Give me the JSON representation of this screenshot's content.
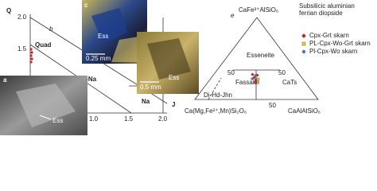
{
  "qj_diagram": {
    "y_axis_label": "Q",
    "x_axis_label": "J",
    "panel_label": "b",
    "x_ticks": [
      "1.0",
      "1.5",
      "2.0"
    ],
    "y_ticks": [
      "2.0",
      "1.5"
    ],
    "regions": [
      "Quad",
      "Ca-Na",
      "Na"
    ]
  },
  "micrographs": [
    {
      "panel_label": "c",
      "mineral": "Ess",
      "scale": "0.25 mm"
    },
    {
      "mineral": "Ess",
      "scale": "0.5 mm"
    },
    {
      "panel_label": "a",
      "mineral": "Ess"
    }
  ],
  "ternary": {
    "panel_label": "e",
    "apex_top": "CaFe³⁺AlSiO₆",
    "apex_left": "Ca(Mg,Fe²⁺,Mn)Si₂O₆",
    "apex_right": "CaAlAlSiO₆",
    "fields": [
      "Esseneite",
      "Fassaite",
      "CaTs",
      "Di-Hd-Jhn"
    ],
    "ticks": [
      "50",
      "50",
      "50"
    ],
    "note": "Subsilicic aluminian ferrian diopside",
    "legend": [
      "Cpx-Grt skarn",
      "PL-Cpx-Wo-Grt skarn",
      "Pl-Cpx-Wo skarn"
    ]
  }
}
